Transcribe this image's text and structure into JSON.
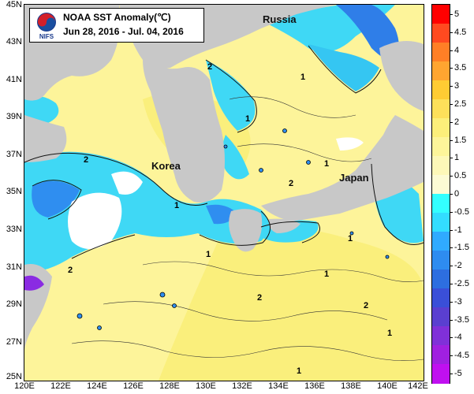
{
  "title": "NOAA SST Anomaly(℃)",
  "subtitle": "Jun 28, 2016 - Jul. 04, 2016",
  "logo_text": "NIFS",
  "places": [
    {
      "id": "russia",
      "label": "Russia"
    },
    {
      "id": "korea",
      "label": "Korea"
    },
    {
      "id": "japan",
      "label": "Japan"
    }
  ],
  "lat_labels": [
    "45N",
    "43N",
    "41N",
    "39N",
    "37N",
    "35N",
    "33N",
    "31N",
    "29N",
    "27N",
    "25N"
  ],
  "lon_labels": [
    "120E",
    "122E",
    "124E",
    "126E",
    "128E",
    "130E",
    "132E",
    "134E",
    "136E",
    "138E",
    "140E",
    "142E"
  ],
  "contour_labels": [
    "2",
    "1",
    "2",
    "1",
    "2",
    "1",
    "1",
    "2",
    "1",
    "1",
    "2",
    "1",
    "1",
    "2",
    "1"
  ],
  "colorbar": {
    "ticks": [
      "5",
      "4.5",
      "4",
      "3.5",
      "3",
      "2.5",
      "2",
      "1.5",
      "1",
      "0.5",
      "0",
      "-0.5",
      "-1",
      "-1.5",
      "-2",
      "-2.5",
      "-3",
      "-3.5",
      "-4",
      "-4.5",
      "-5"
    ],
    "colors": [
      "#ff0000",
      "#ff4a20",
      "#ff7f26",
      "#ffa530",
      "#ffcc33",
      "#fde05a",
      "#fcef7a",
      "#fdf59a",
      "#fdf8b8",
      "#fcfbd4",
      "#33ffff",
      "#33ddff",
      "#30aaff",
      "#2e8cf0",
      "#2d6ee0",
      "#3a4fd8",
      "#5a3fd0",
      "#8030d8",
      "#a020e0",
      "#c010f0"
    ]
  },
  "colors": {
    "land": "#c8c8c8",
    "sea_warm": "#fdf49a",
    "sea_warmer": "#f8ea6a",
    "sea_cool": "#3fd8f5",
    "sea_cold": "#2f8ef0",
    "sea_coldest": "#2866e0",
    "nodata": "#ffffff"
  }
}
